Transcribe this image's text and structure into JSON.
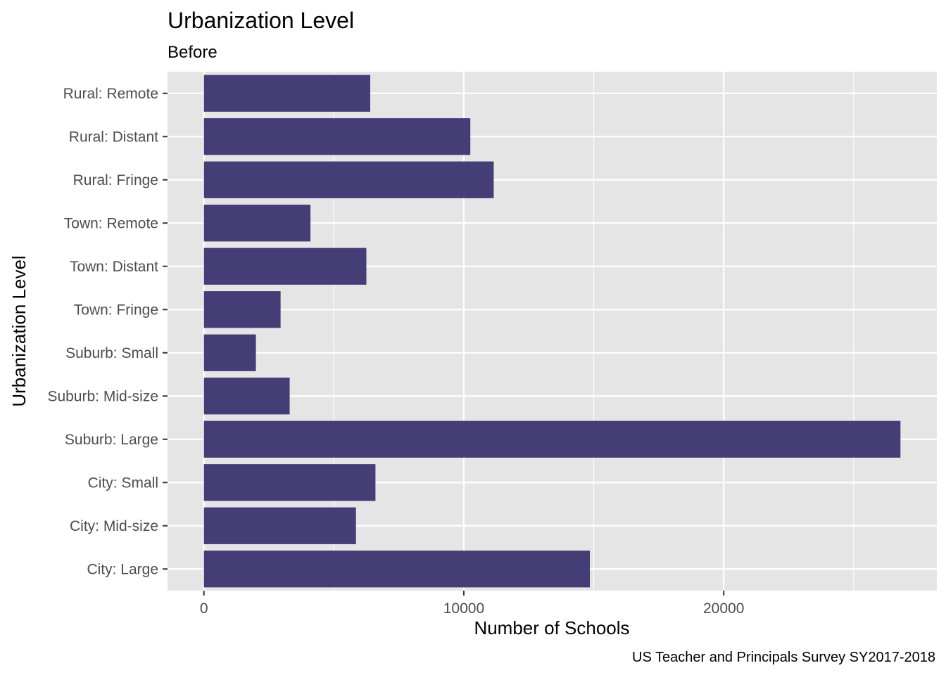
{
  "chart_data": {
    "type": "bar",
    "orientation": "horizontal",
    "title": "Urbanization Level",
    "subtitle": "Before",
    "xlabel": "Number of Schools",
    "ylabel": "Urbanization Level",
    "caption": "US Teacher and Principals Survey SY2017-2018",
    "categories": [
      "Rural: Remote",
      "Rural: Distant",
      "Rural: Fringe",
      "Town: Remote",
      "Town: Distant",
      "Town: Fringe",
      "Suburb: Small",
      "Suburb: Mid-size",
      "Suburb: Large",
      "City: Small",
      "City: Mid-size",
      "City: Large"
    ],
    "values": [
      6400,
      10250,
      11150,
      4100,
      6250,
      2950,
      2000,
      3300,
      26800,
      6600,
      5850,
      14850
    ],
    "xlim": [
      -1400,
      28200
    ],
    "x_ticks": [
      0,
      10000,
      20000
    ],
    "x_tick_labels": [
      "0",
      "10000",
      "20000"
    ],
    "grid": true,
    "bar_color": "#3b3470",
    "panel_background": "#e5e5e5",
    "grid_color": "#ffffff"
  }
}
